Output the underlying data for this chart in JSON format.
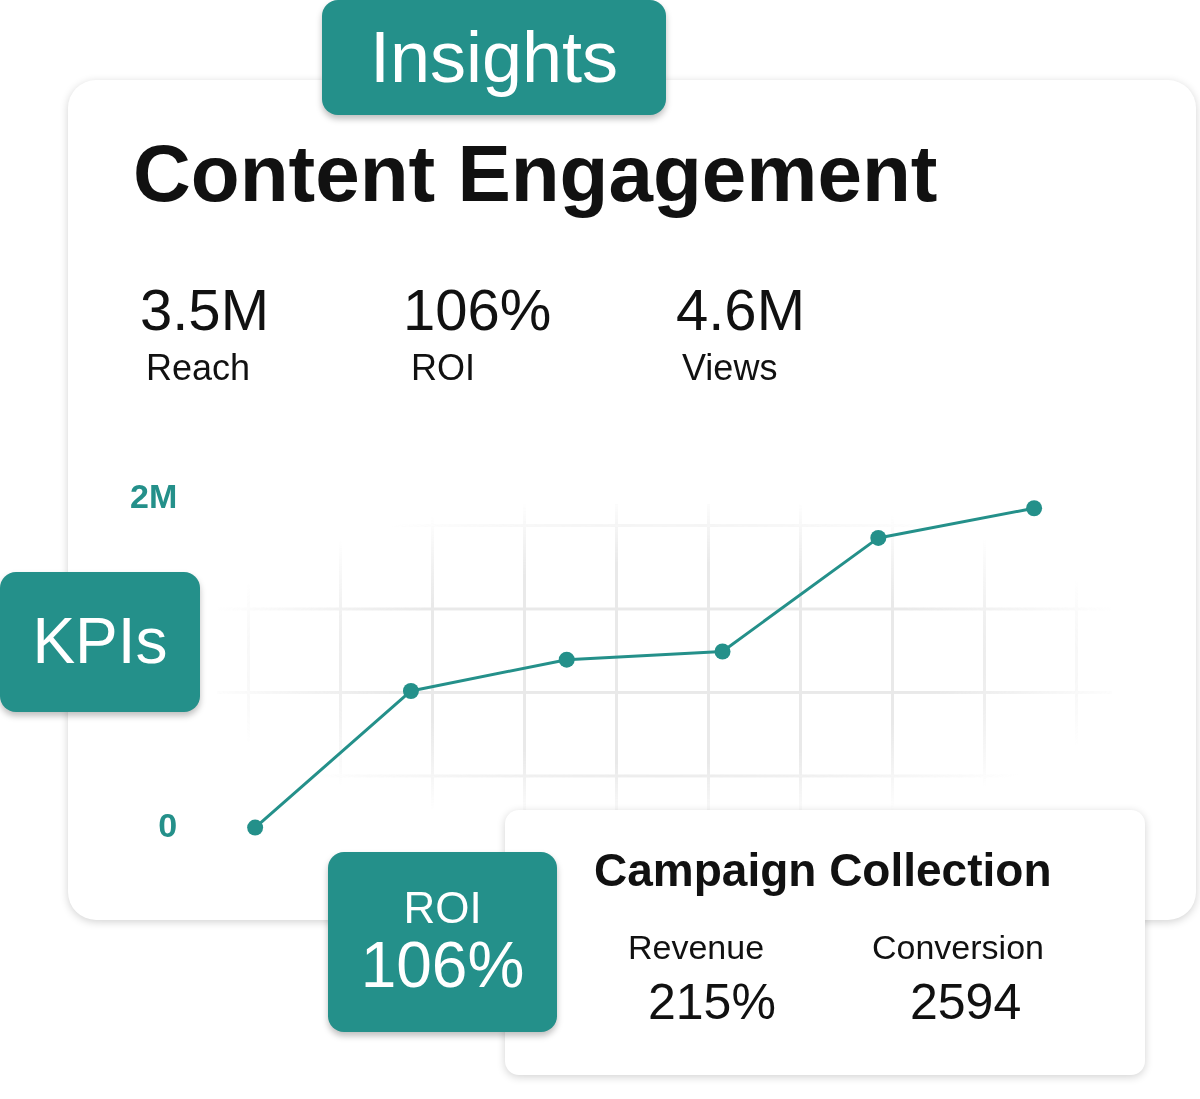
{
  "chart_data": {
    "type": "line",
    "title": "Content Engagement",
    "categories": [
      null,
      null,
      null,
      null,
      null,
      null
    ],
    "series": [
      {
        "color": "#24908a",
        "values": [
          0,
          830000,
          1020000,
          1070000,
          1760000,
          1940000
        ]
      }
    ],
    "ylim": [
      0,
      2000000
    ],
    "yticks": [
      0,
      {
        "value": 2000000,
        "label": "2M"
      }
    ],
    "tick_labels": "y",
    "marker": "circle",
    "line_style": "solid",
    "legend": false,
    "grid": false,
    "annotations": [
      "Insights",
      "3.5M",
      "Reach",
      "106%",
      "ROI",
      "4.6M",
      "Views",
      "KPIs",
      "ROI",
      "106%",
      "Campaign Collection",
      "Revenue",
      "215%",
      "Conversion",
      "2594"
    ]
  }
}
